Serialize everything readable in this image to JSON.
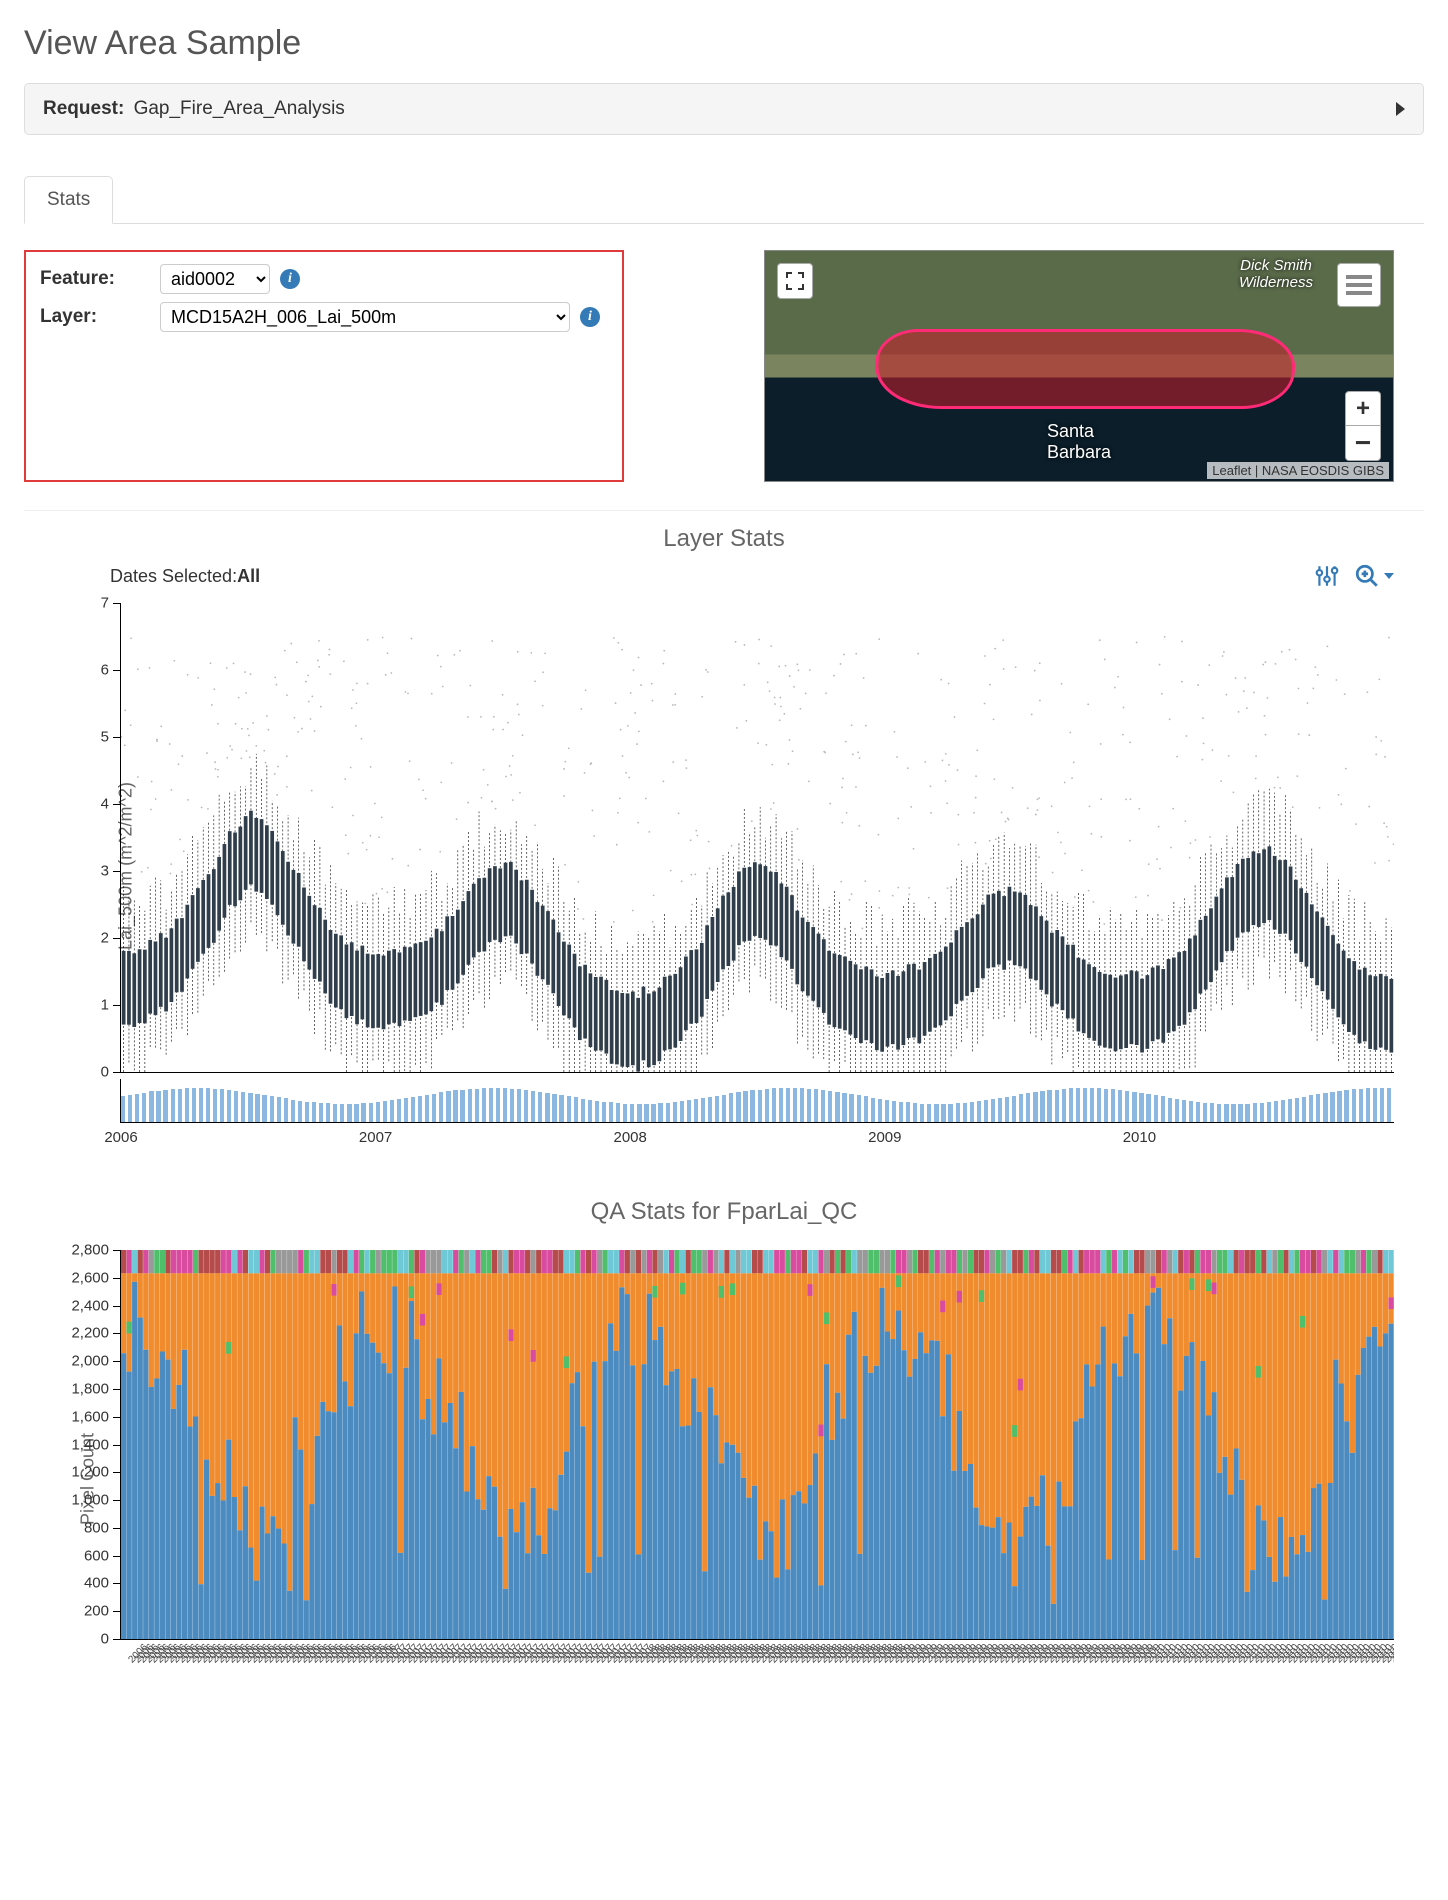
{
  "page_title": "View Area Sample",
  "request": {
    "label": "Request:",
    "value": "Gap_Fire_Area_Analysis"
  },
  "tabs": [
    {
      "id": "stats",
      "label": "Stats",
      "active": true
    }
  ],
  "controls": {
    "feature_label": "Feature:",
    "feature_value": "aid0002",
    "layer_label": "Layer:",
    "layer_value": "MCD15A2H_006_Lai_500m",
    "highlight_border_color": "#e03b3b"
  },
  "map": {
    "place_labels": {
      "dick_smith": "Dick Smith\nWilderness",
      "santa_barbara": "Santa\nBarbara"
    },
    "attribution": "Leaflet | NASA EOSDIS GIBS",
    "fire_color": "rgba(200,30,40,0.55)",
    "fire_border": "#ff2b77"
  },
  "layer_stats": {
    "title": "Layer Stats",
    "dates_selected_label": "Dates Selected:",
    "dates_selected_value": "All",
    "y_title": "Lai_500m (m^2/m^2)",
    "ylim": [
      0,
      7
    ],
    "ytick_step": 1,
    "x_years": [
      2006,
      2007,
      2008,
      2009,
      2010
    ],
    "x_range_months": 60,
    "series_color": "#2f3e4a",
    "outlier_color": "#b8b8b8",
    "background": "#ffffff",
    "median_months": [
      1.2,
      1.3,
      1.5,
      1.9,
      2.4,
      3.0,
      3.3,
      3.0,
      2.5,
      2.0,
      1.5,
      1.3,
      1.2,
      1.3,
      1.4,
      1.6,
      2.0,
      2.4,
      2.6,
      2.3,
      1.8,
      1.3,
      0.9,
      0.7,
      0.6,
      0.7,
      0.9,
      1.3,
      1.9,
      2.4,
      2.6,
      2.3,
      1.8,
      1.4,
      1.1,
      1.0,
      0.9,
      1.0,
      1.1,
      1.4,
      1.8,
      2.1,
      2.2,
      1.9,
      1.5,
      1.2,
      1.0,
      0.9,
      0.9,
      1.0,
      1.3,
      1.8,
      2.3,
      2.7,
      2.8,
      2.5,
      2.0,
      1.5,
      1.1,
      0.9
    ],
    "iqr_half": 0.55,
    "whisker_half": 1.2,
    "outlier_max": 6.5
  },
  "qa_stats": {
    "title": "QA Stats for FparLai_QC",
    "y_title": "Pixel Count",
    "ymax": 2800,
    "ytick_step": 200,
    "colors": {
      "cat0": "#4b8bbf",
      "cat1": "#f08c2e",
      "cat2": "#4fbf6b",
      "cat3": "#d94b9e",
      "cat4": "#6ec8d6",
      "cat5": "#b54b4b",
      "cat6": "#999999"
    },
    "n_bars": 230,
    "blue_fraction_cycle": [
      0.8,
      0.75,
      0.65,
      0.55,
      0.4,
      0.3,
      0.25,
      0.3,
      0.45,
      0.6,
      0.72,
      0.78
    ],
    "topbar_colors": [
      "#4fbf6b",
      "#d94b9e",
      "#6ec8d6",
      "#b54b4b",
      "#999999"
    ]
  }
}
